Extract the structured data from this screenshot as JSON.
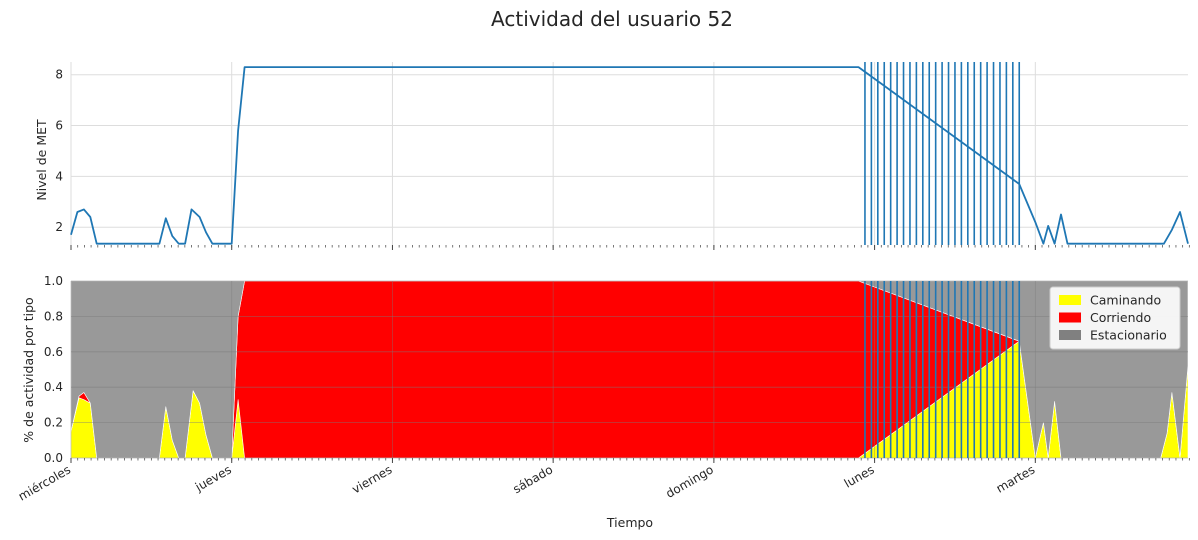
{
  "chart_data": {
    "title": "Actividad del usuario 52",
    "xlabel": "Tiempo",
    "x_ticks": [
      "miércoles",
      "jueves",
      "viernes",
      "sábado",
      "domingo",
      "lunes",
      "martes"
    ],
    "x_range": [
      0,
      6.95
    ],
    "colors": {
      "met_line": "#1f77b4",
      "walking": "#ffff00",
      "running": "#ff0000",
      "stationary": "#999999",
      "stationary_legend": "#808080",
      "grid_top": "#dddddd",
      "grid_bottom": "#7a7a7a"
    },
    "panels": [
      {
        "type": "line",
        "ylabel": "Nivel de MET",
        "ylim": [
          1.3,
          8.5
        ],
        "yticks": [
          "2",
          "4",
          "6",
          "8"
        ],
        "ytick_values": [
          2,
          4,
          6,
          8
        ],
        "grid": true,
        "series": [
          {
            "x": [
              0.0,
              0.04,
              0.08,
              0.12,
              0.16,
              0.2,
              0.3,
              0.4,
              0.5,
              0.55,
              0.59,
              0.63,
              0.67,
              0.71,
              0.75,
              0.8,
              0.84,
              0.88,
              0.92,
              0.96,
              1.0,
              1.04,
              1.08,
              4.9,
              5.9,
              6.0,
              6.05,
              6.08,
              6.12,
              6.16,
              6.2,
              6.4,
              6.6,
              6.8,
              6.85,
              6.9,
              6.95
            ],
            "y": [
              1.7,
              2.6,
              2.7,
              2.4,
              1.35,
              1.35,
              1.35,
              1.35,
              1.35,
              1.35,
              2.35,
              1.65,
              1.35,
              1.35,
              2.7,
              2.4,
              1.8,
              1.35,
              1.35,
              1.35,
              1.35,
              5.8,
              8.3,
              8.3,
              3.7,
              2.2,
              1.35,
              2.05,
              1.35,
              2.5,
              1.35,
              1.35,
              1.35,
              1.35,
              1.9,
              2.6,
              1.35
            ]
          }
        ],
        "vertical_lines": {
          "x_start": 4.94,
          "x_end": 5.9,
          "count": 25,
          "y_top": 8.5
        }
      },
      {
        "type": "stacked-area",
        "ylabel": "% de actividad por tipo",
        "ylim": [
          0.0,
          1.0
        ],
        "yticks": [
          "0.0",
          "0.2",
          "0.4",
          "0.6",
          "0.8",
          "1.0"
        ],
        "ytick_values": [
          0.0,
          0.2,
          0.4,
          0.6,
          0.8,
          1.0
        ],
        "grid": true,
        "legend_position": "top-right",
        "x": [
          0.0,
          0.05,
          0.08,
          0.12,
          0.16,
          0.2,
          0.3,
          0.45,
          0.55,
          0.59,
          0.63,
          0.67,
          0.71,
          0.76,
          0.8,
          0.84,
          0.88,
          0.92,
          0.96,
          1.0,
          1.04,
          1.08,
          4.9,
          5.9,
          6.0,
          6.05,
          6.08,
          6.12,
          6.16,
          6.2,
          6.4,
          6.6,
          6.78,
          6.82,
          6.85,
          6.9,
          6.95
        ],
        "series": [
          {
            "name": "Caminando",
            "values": [
              0.15,
              0.34,
              0.33,
              0.31,
              0.0,
              0.0,
              0.0,
              0.0,
              0.0,
              0.29,
              0.1,
              0.0,
              0.0,
              0.38,
              0.31,
              0.13,
              0.0,
              0.0,
              0.0,
              0.0,
              0.33,
              0.0,
              0.0,
              0.66,
              0.0,
              0.2,
              0.0,
              0.32,
              0.0,
              0.0,
              0.0,
              0.0,
              0.0,
              0.14,
              0.37,
              0.0,
              0.52
            ]
          },
          {
            "name": "Corriendo",
            "values": [
              0.0,
              0.01,
              0.04,
              0.0,
              0.0,
              0.0,
              0.0,
              0.0,
              0.0,
              0.0,
              0.0,
              0.0,
              0.0,
              0.0,
              0.0,
              0.0,
              0.0,
              0.0,
              0.0,
              0.0,
              0.47,
              1.0,
              1.0,
              0.0,
              0.0,
              0.0,
              0.0,
              0.0,
              0.0,
              0.0,
              0.0,
              0.0,
              0.0,
              0.0,
              0.0,
              0.0,
              0.0
            ]
          },
          {
            "name": "Estacionario",
            "values": [
              0.85,
              0.65,
              0.63,
              0.69,
              1.0,
              1.0,
              1.0,
              1.0,
              1.0,
              0.71,
              0.9,
              1.0,
              1.0,
              0.62,
              0.69,
              0.87,
              1.0,
              1.0,
              1.0,
              1.0,
              0.2,
              0.0,
              0.0,
              0.34,
              1.0,
              0.8,
              1.0,
              0.68,
              1.0,
              1.0,
              1.0,
              1.0,
              1.0,
              0.86,
              0.63,
              1.0,
              0.48
            ]
          }
        ],
        "vertical_lines": {
          "x_start": 4.94,
          "x_end": 5.9,
          "count": 25,
          "y_top": 1.0
        }
      }
    ]
  }
}
